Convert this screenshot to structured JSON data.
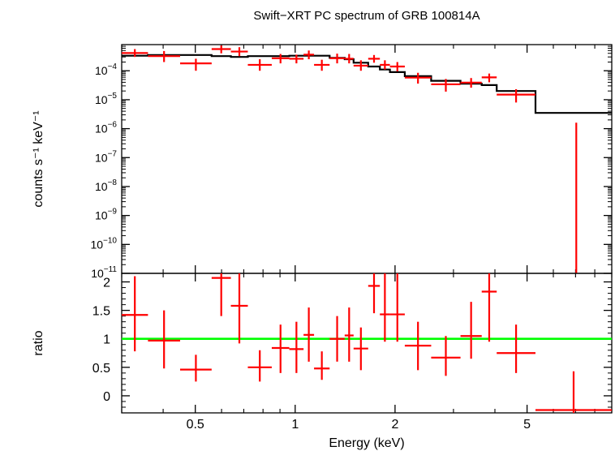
{
  "chart_data": {
    "type": "scatter",
    "title": "Swift−XRT PC spectrum of GRB 100814A",
    "xlabel": "Energy (keV)",
    "x_scale": "log",
    "xlim": [
      0.3,
      9.0
    ],
    "x_ticks": [
      0.5,
      1,
      2,
      5
    ],
    "x_tick_labels": [
      "0.5",
      "1",
      "2",
      "5"
    ],
    "panels": [
      {
        "name": "spectrum",
        "ylabel": "counts s⁻¹ keV⁻¹",
        "y_scale": "log",
        "ylim": [
          1e-11,
          0.0008
        ],
        "y_ticks": [
          {
            "value": 0.0001,
            "mantissa": "10",
            "exp": "−4"
          },
          {
            "value": 1e-05,
            "mantissa": "10",
            "exp": "−5"
          },
          {
            "value": 1e-06,
            "mantissa": "10",
            "exp": "−6"
          },
          {
            "value": 1e-07,
            "mantissa": "10",
            "exp": "−7"
          },
          {
            "value": 1e-08,
            "mantissa": "10",
            "exp": "−8"
          },
          {
            "value": 1e-09,
            "mantissa": "10",
            "exp": "−9"
          },
          {
            "value": 1e-10,
            "mantissa": "10",
            "exp": "−10"
          },
          {
            "value": 1e-11,
            "mantissa": "10",
            "exp": "−11"
          }
        ],
        "data_color": "#ff0000",
        "data": [
          {
            "xlo": 0.3,
            "xhi": 0.36,
            "y": 0.00041,
            "ylo": 0.0003,
            "yhi": 0.00056
          },
          {
            "xlo": 0.36,
            "xhi": 0.45,
            "y": 0.00032,
            "ylo": 0.0002,
            "yhi": 0.00048
          },
          {
            "xlo": 0.45,
            "xhi": 0.56,
            "y": 0.00018,
            "ylo": 0.0001,
            "yhi": 0.00026
          },
          {
            "xlo": 0.56,
            "xhi": 0.64,
            "y": 0.00056,
            "ylo": 0.0004,
            "yhi": 0.00075
          },
          {
            "xlo": 0.64,
            "xhi": 0.72,
            "y": 0.00046,
            "ylo": 0.00032,
            "yhi": 0.00065
          },
          {
            "xlo": 0.72,
            "xhi": 0.85,
            "y": 0.00016,
            "ylo": 0.0001,
            "yhi": 0.00025
          },
          {
            "xlo": 0.85,
            "xhi": 0.96,
            "y": 0.00027,
            "ylo": 0.00018,
            "yhi": 0.00038
          },
          {
            "xlo": 0.96,
            "xhi": 1.06,
            "y": 0.00026,
            "ylo": 0.00018,
            "yhi": 0.00036
          },
          {
            "xlo": 1.06,
            "xhi": 1.14,
            "y": 0.00036,
            "ylo": 0.00025,
            "yhi": 0.0005
          },
          {
            "xlo": 1.14,
            "xhi": 1.27,
            "y": 0.00016,
            "ylo": 0.0001,
            "yhi": 0.00024
          },
          {
            "xlo": 1.27,
            "xhi": 1.41,
            "y": 0.00027,
            "ylo": 0.00018,
            "yhi": 0.00039
          },
          {
            "xlo": 1.41,
            "xhi": 1.5,
            "y": 0.00026,
            "ylo": 0.00018,
            "yhi": 0.00038
          },
          {
            "xlo": 1.5,
            "xhi": 1.66,
            "y": 0.00015,
            "ylo": 0.0001,
            "yhi": 0.00023
          },
          {
            "xlo": 1.66,
            "xhi": 1.8,
            "y": 0.00026,
            "ylo": 0.00019,
            "yhi": 0.00035
          },
          {
            "xlo": 1.8,
            "xhi": 1.93,
            "y": 0.00016,
            "ylo": 0.00011,
            "yhi": 0.00023
          },
          {
            "xlo": 1.93,
            "xhi": 2.14,
            "y": 0.00014,
            "ylo": 9.5e-05,
            "yhi": 0.0002
          },
          {
            "xlo": 2.14,
            "xhi": 2.57,
            "y": 5.8e-05,
            "ylo": 3.6e-05,
            "yhi": 8.5e-05
          },
          {
            "xlo": 2.57,
            "xhi": 3.15,
            "y": 3.4e-05,
            "ylo": 1.9e-05,
            "yhi": 5.2e-05
          },
          {
            "xlo": 3.15,
            "xhi": 3.65,
            "y": 3.9e-05,
            "ylo": 2.6e-05,
            "yhi": 5.6e-05
          },
          {
            "xlo": 3.65,
            "xhi": 4.05,
            "y": 5.9e-05,
            "ylo": 4e-05,
            "yhi": 8e-05
          },
          {
            "xlo": 4.05,
            "xhi": 5.3,
            "y": 1.5e-05,
            "ylo": 8e-06,
            "yhi": 2.3e-05
          },
          {
            "xlo": 6.6,
            "xhi": 7.5,
            "y": null,
            "ylo": 1e-11,
            "yhi": 1.6e-06
          }
        ],
        "model_color": "#000000",
        "model": [
          {
            "xlo": 0.3,
            "xhi": 0.36,
            "y": 0.00033
          },
          {
            "xlo": 0.36,
            "xhi": 0.45,
            "y": 0.00035
          },
          {
            "xlo": 0.45,
            "xhi": 0.56,
            "y": 0.00035
          },
          {
            "xlo": 0.56,
            "xhi": 0.64,
            "y": 0.00032
          },
          {
            "xlo": 0.64,
            "xhi": 0.72,
            "y": 0.0003
          },
          {
            "xlo": 0.72,
            "xhi": 0.85,
            "y": 0.00032
          },
          {
            "xlo": 0.85,
            "xhi": 0.96,
            "y": 0.00032
          },
          {
            "xlo": 0.96,
            "xhi": 1.06,
            "y": 0.00033
          },
          {
            "xlo": 1.06,
            "xhi": 1.14,
            "y": 0.00033
          },
          {
            "xlo": 1.14,
            "xhi": 1.27,
            "y": 0.00033
          },
          {
            "xlo": 1.27,
            "xhi": 1.41,
            "y": 0.00028
          },
          {
            "xlo": 1.41,
            "xhi": 1.5,
            "y": 0.00025
          },
          {
            "xlo": 1.5,
            "xhi": 1.66,
            "y": 0.00019
          },
          {
            "xlo": 1.66,
            "xhi": 1.8,
            "y": 0.00014
          },
          {
            "xlo": 1.8,
            "xhi": 1.93,
            "y": 0.00011
          },
          {
            "xlo": 1.93,
            "xhi": 2.14,
            "y": 9e-05
          },
          {
            "xlo": 2.14,
            "xhi": 2.57,
            "y": 6.5e-05
          },
          {
            "xlo": 2.57,
            "xhi": 3.15,
            "y": 4.5e-05
          },
          {
            "xlo": 3.15,
            "xhi": 3.65,
            "y": 3.6e-05
          },
          {
            "xlo": 3.65,
            "xhi": 4.05,
            "y": 3.2e-05
          },
          {
            "xlo": 4.05,
            "xhi": 5.3,
            "y": 2e-05
          },
          {
            "xlo": 5.3,
            "xhi": 9.0,
            "y": 3.5e-06
          }
        ]
      },
      {
        "name": "ratio",
        "ylabel": "ratio",
        "y_scale": "linear",
        "ylim": [
          -0.3,
          2.15
        ],
        "y_ticks": [
          {
            "value": 0,
            "label": "0"
          },
          {
            "value": 0.5,
            "label": "0.5"
          },
          {
            "value": 1,
            "label": "1"
          },
          {
            "value": 1.5,
            "label": "1.5"
          },
          {
            "value": 2,
            "label": "2"
          }
        ],
        "reference_line": {
          "y": 1,
          "color": "#00ff00"
        },
        "data_color": "#ff0000",
        "data": [
          {
            "xlo": 0.3,
            "xhi": 0.36,
            "y": 1.42,
            "ylo": 0.78,
            "yhi": 2.1
          },
          {
            "xlo": 0.36,
            "xhi": 0.45,
            "y": 0.97,
            "ylo": 0.48,
            "yhi": 1.5
          },
          {
            "xlo": 0.45,
            "xhi": 0.56,
            "y": 0.46,
            "ylo": 0.25,
            "yhi": 0.72
          },
          {
            "xlo": 0.56,
            "xhi": 0.64,
            "y": 2.07,
            "ylo": 1.4,
            "yhi": 2.15
          },
          {
            "xlo": 0.64,
            "xhi": 0.72,
            "y": 1.58,
            "ylo": 0.92,
            "yhi": 2.15
          },
          {
            "xlo": 0.72,
            "xhi": 0.85,
            "y": 0.5,
            "ylo": 0.25,
            "yhi": 0.8
          },
          {
            "xlo": 0.85,
            "xhi": 0.96,
            "y": 0.84,
            "ylo": 0.4,
            "yhi": 1.25
          },
          {
            "xlo": 0.96,
            "xhi": 1.06,
            "y": 0.82,
            "ylo": 0.4,
            "yhi": 1.3
          },
          {
            "xlo": 1.06,
            "xhi": 1.14,
            "y": 1.07,
            "ylo": 0.6,
            "yhi": 1.55
          },
          {
            "xlo": 1.14,
            "xhi": 1.27,
            "y": 0.48,
            "ylo": 0.28,
            "yhi": 0.78
          },
          {
            "xlo": 1.27,
            "xhi": 1.41,
            "y": 1.0,
            "ylo": 0.6,
            "yhi": 1.4
          },
          {
            "xlo": 1.41,
            "xhi": 1.5,
            "y": 1.06,
            "ylo": 0.6,
            "yhi": 1.55
          },
          {
            "xlo": 1.5,
            "xhi": 1.66,
            "y": 0.83,
            "ylo": 0.45,
            "yhi": 1.2
          },
          {
            "xlo": 1.66,
            "xhi": 1.8,
            "y": 1.93,
            "ylo": 1.45,
            "yhi": 2.15
          },
          {
            "xlo": 1.8,
            "xhi": 1.93,
            "y": 1.43,
            "ylo": 0.95,
            "yhi": 2.15
          },
          {
            "xlo": 1.93,
            "xhi": 2.14,
            "y": 1.43,
            "ylo": 0.95,
            "yhi": 2.15
          },
          {
            "xlo": 2.14,
            "xhi": 2.57,
            "y": 0.88,
            "ylo": 0.45,
            "yhi": 1.3
          },
          {
            "xlo": 2.57,
            "xhi": 3.15,
            "y": 0.67,
            "ylo": 0.35,
            "yhi": 1.05
          },
          {
            "xlo": 3.15,
            "xhi": 3.65,
            "y": 1.05,
            "ylo": 0.65,
            "yhi": 1.65
          },
          {
            "xlo": 3.65,
            "xhi": 4.05,
            "y": 1.83,
            "ylo": 0.95,
            "yhi": 2.15
          },
          {
            "xlo": 4.05,
            "xhi": 5.3,
            "y": 0.75,
            "ylo": 0.4,
            "yhi": 1.25
          },
          {
            "xlo": 5.3,
            "xhi": 9.0,
            "y": -0.25,
            "ylo": -0.3,
            "yhi": 0.43
          }
        ]
      }
    ]
  }
}
